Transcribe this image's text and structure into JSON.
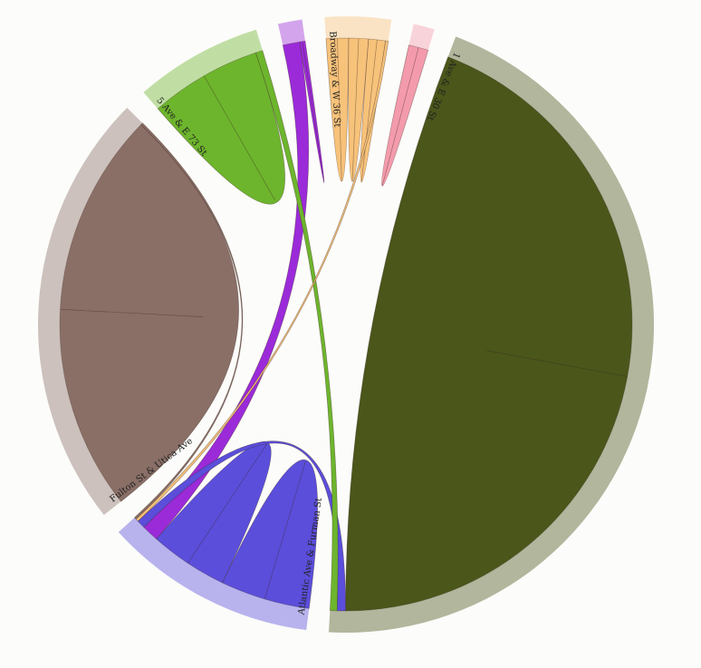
{
  "chart_data": {
    "type": "chord",
    "title": "",
    "nodes": [
      {
        "name": "Broadway & W 36 St",
        "color": "#f7c27a"
      },
      {
        "name": "",
        "color": "#f39bac"
      },
      {
        "name": "1 Ave & E 30 St",
        "color": "#4a561a"
      },
      {
        "name": "Atlantic Ave & Furman St",
        "color": "#5b4edb"
      },
      {
        "name": "Fulton St & Utica Ave",
        "color": "#8a6f67"
      },
      {
        "name": "5 Ave & E 73 St",
        "color": "#6db52d"
      },
      {
        "name": "",
        "color": "#9b2bd9"
      }
    ],
    "flows": [
      {
        "source": 2,
        "target": 2,
        "value": 280
      },
      {
        "source": 4,
        "target": 4,
        "value": 145
      },
      {
        "source": 5,
        "target": 5,
        "value": 40
      },
      {
        "source": 0,
        "target": 0,
        "value": 8
      },
      {
        "source": 0,
        "target": 0,
        "value": 7
      },
      {
        "source": 0,
        "target": 0,
        "value": 6
      },
      {
        "source": 3,
        "target": 3,
        "value": 32
      },
      {
        "source": 3,
        "target": 3,
        "value": 28
      },
      {
        "source": 6,
        "target": 3,
        "value": 12
      },
      {
        "source": 3,
        "target": 2,
        "value": 6
      },
      {
        "source": 5,
        "target": 2,
        "value": 5
      },
      {
        "source": 0,
        "target": 3,
        "value": 2
      },
      {
        "source": 4,
        "target": 3,
        "value": 1.5
      },
      {
        "source": 1,
        "target": 1,
        "value": 7
      },
      {
        "source": 6,
        "target": 6,
        "value": 2
      }
    ]
  }
}
